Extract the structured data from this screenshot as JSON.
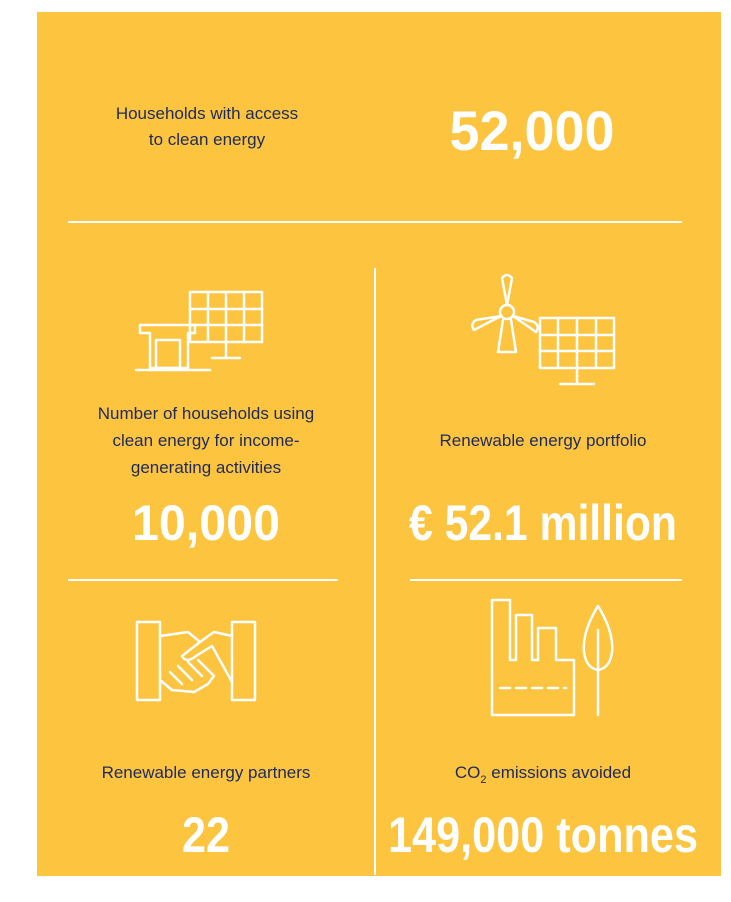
{
  "hero": {
    "label_lines": [
      "Households with access",
      "to clean energy"
    ],
    "value": "52,000"
  },
  "stats": [
    {
      "label_lines": [
        "Number of households using",
        "clean energy for income-",
        "generating activities"
      ],
      "value": "10,000"
    },
    {
      "label_lines": [
        "Renewable energy portfolio"
      ],
      "value": "€ 52.1 million"
    },
    {
      "label_lines": [
        "Renewable energy partners"
      ],
      "value": "22"
    },
    {
      "label": {
        "main": "CO",
        "sub": "2",
        "rest": " emissions avoided"
      },
      "value": "149,000 tonnes"
    }
  ]
}
